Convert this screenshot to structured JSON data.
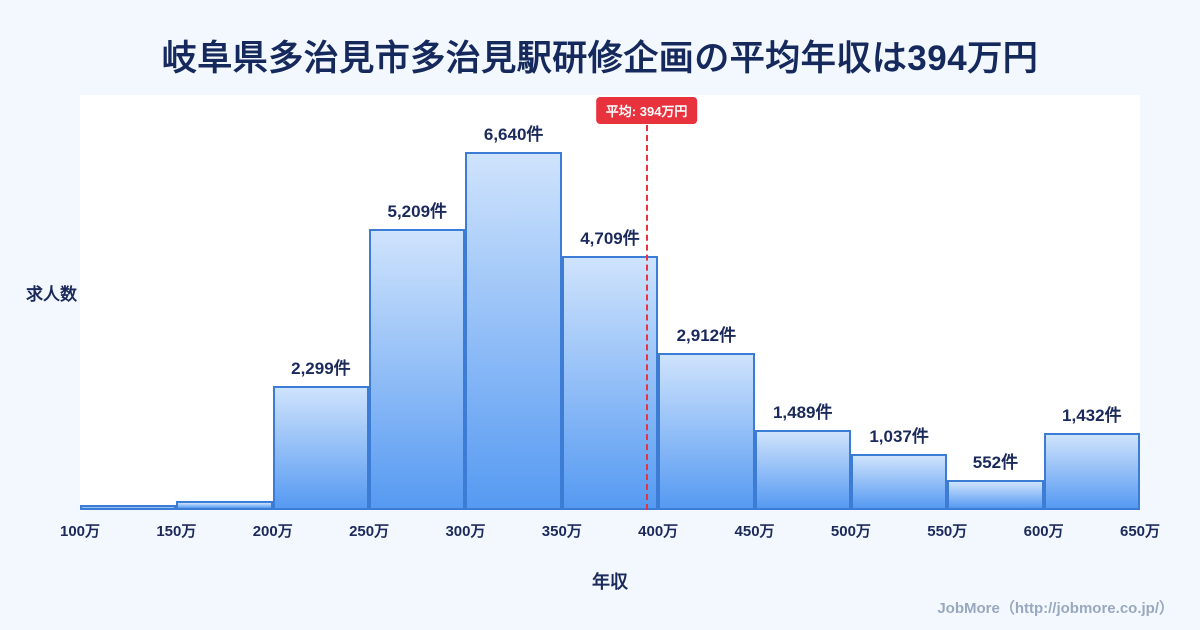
{
  "title": "岐阜県多治見市多治見駅研修企画の平均年収は394万円",
  "footer": "JobMore（http://jobmore.co.jp/）",
  "chart_data": {
    "type": "bar",
    "subtype": "histogram",
    "title": "岐阜県多治見市多治見駅研修企画の平均年収は394万円",
    "xlabel": "年収",
    "ylabel": "求人数",
    "x_ticks": [
      "100万",
      "150万",
      "200万",
      "250万",
      "300万",
      "350万",
      "400万",
      "450万",
      "500万",
      "550万",
      "600万",
      "650万"
    ],
    "x_range": [
      100,
      650
    ],
    "ylim": [
      0,
      7000
    ],
    "legend": "none",
    "grid": false,
    "bins": [
      {
        "range": "100万-150万",
        "value": 90,
        "label": ""
      },
      {
        "range": "150万-200万",
        "value": 170,
        "label": ""
      },
      {
        "range": "200万-250万",
        "value": 2299,
        "label": "2,299件"
      },
      {
        "range": "250万-300万",
        "value": 5209,
        "label": "5,209件"
      },
      {
        "range": "300万-350万",
        "value": 6640,
        "label": "6,640件"
      },
      {
        "range": "350万-400万",
        "value": 4709,
        "label": "4,709件"
      },
      {
        "range": "400万-450万",
        "value": 2912,
        "label": "2,912件"
      },
      {
        "range": "450万-500万",
        "value": 1489,
        "label": "1,489件"
      },
      {
        "range": "500万-550万",
        "value": 1037,
        "label": "1,037件"
      },
      {
        "range": "550万-600万",
        "value": 552,
        "label": "552件"
      },
      {
        "range": "600万-650万",
        "value": 1432,
        "label": "1,432件"
      }
    ],
    "average": {
      "value": 394,
      "label": "平均: 394万円"
    },
    "colors": {
      "background": "#f3f8fe",
      "plot_background": "#ffffff",
      "bar_fill_top": "#cfe3fc",
      "bar_fill_bottom": "#569af2",
      "bar_border": "#3c7cd4",
      "average_line": "#e8323e",
      "title_text": "#16295c",
      "label_text": "#1b2a5b",
      "footer_text": "#9aa8bf"
    }
  }
}
